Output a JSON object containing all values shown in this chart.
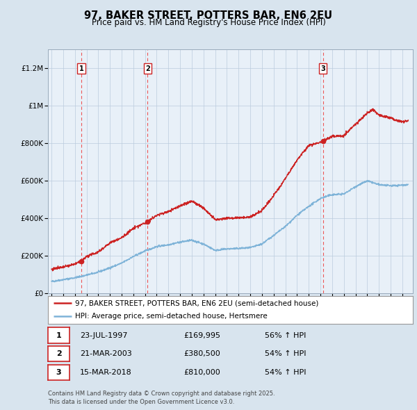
{
  "title": "97, BAKER STREET, POTTERS BAR, EN6 2EU",
  "subtitle": "Price paid vs. HM Land Registry's House Price Index (HPI)",
  "legend_line1": "97, BAKER STREET, POTTERS BAR, EN6 2EU (semi-detached house)",
  "legend_line2": "HPI: Average price, semi-detached house, Hertsmere",
  "footer": "Contains HM Land Registry data © Crown copyright and database right 2025.\nThis data is licensed under the Open Government Licence v3.0.",
  "sale_points": [
    {
      "label": "1",
      "date_num": 1997.56,
      "price": 169995,
      "date_str": "23-JUL-1997",
      "pct": "56%",
      "dir": "↑"
    },
    {
      "label": "2",
      "date_num": 2003.22,
      "price": 380500,
      "date_str": "21-MAR-2003",
      "pct": "54%",
      "dir": "↑"
    },
    {
      "label": "3",
      "date_num": 2018.21,
      "price": 810000,
      "date_str": "15-MAR-2018",
      "pct": "54%",
      "dir": "↑"
    }
  ],
  "hpi_color": "#7eb3d8",
  "price_color": "#cc2222",
  "vline_color": "#ee4444",
  "background_color": "#d8e4ee",
  "plot_bg_color": "#e8f0f8",
  "ylim": [
    0,
    1300000
  ],
  "xlim_start": 1994.7,
  "xlim_end": 2025.9,
  "yticks": [
    0,
    200000,
    400000,
    600000,
    800000,
    1000000,
    1200000
  ],
  "ytick_labels": [
    "£0",
    "£200K",
    "£400K",
    "£600K",
    "£800K",
    "£1M",
    "£1.2M"
  ],
  "xticks": [
    1995,
    1996,
    1997,
    1998,
    1999,
    2000,
    2001,
    2002,
    2003,
    2004,
    2005,
    2006,
    2007,
    2008,
    2009,
    2010,
    2011,
    2012,
    2013,
    2014,
    2015,
    2016,
    2017,
    2018,
    2019,
    2020,
    2021,
    2022,
    2023,
    2024,
    2025
  ]
}
